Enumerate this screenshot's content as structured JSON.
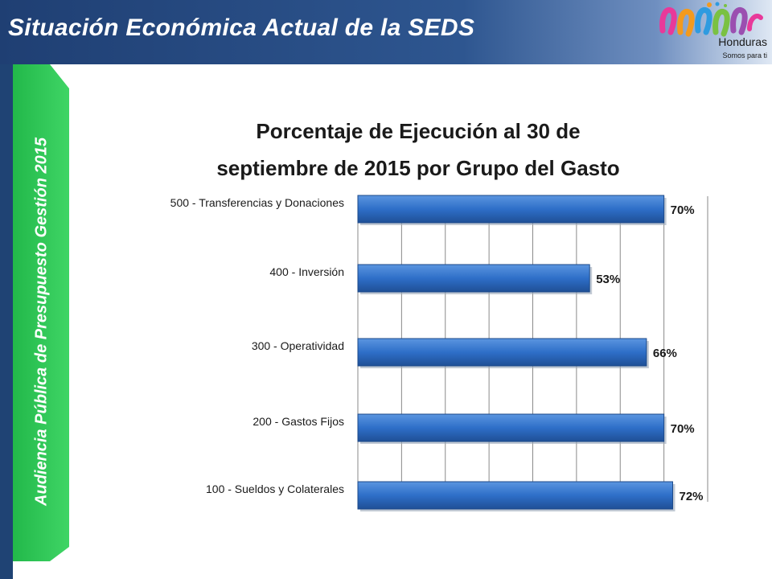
{
  "header": {
    "title": "Situación Económica Actual de la SEDS"
  },
  "logo": {
    "name": "Honduras",
    "tagline": "Somos para ti"
  },
  "sidebar": {
    "text": "Audiencia Pública de Presupuesto Gestión 2015"
  },
  "colors": {
    "header_bg": "#2e5690",
    "side_dark": "#1f4374",
    "side_green": "#1fbf4a",
    "bar": "#2e6fc8"
  },
  "chart_data": {
    "type": "bar",
    "orientation": "horizontal",
    "title_line1": "Porcentaje de Ejecución al 30 de",
    "title_line2": "septiembre de 2015 por Grupo del Gasto",
    "categories": [
      "500 - Transferencias y Donaciones",
      "400 - Inversión",
      "300 - Operatividad",
      "200 - Gastos Fijos",
      "100 - Sueldos y Colaterales"
    ],
    "values": [
      70,
      53,
      66,
      70,
      72
    ],
    "value_labels": [
      "70%",
      "53%",
      "66%",
      "70%",
      "72%"
    ],
    "xlim": [
      0,
      80
    ],
    "grid": true,
    "legend": "none"
  }
}
